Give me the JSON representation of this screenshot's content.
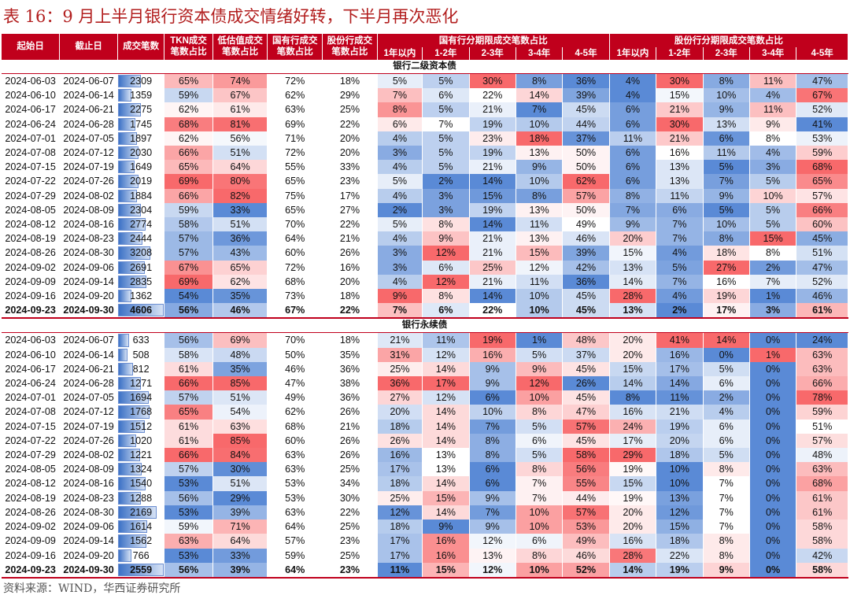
{
  "title": "表 16：9 月上半月银行资本债成交情绪好转，下半月再次恶化",
  "source": "资料来源：WIND，华西证券研究所",
  "header": {
    "start_date": "起始日",
    "end_date": "截止日",
    "count": "成交笔数",
    "tkn": "TKN成交笔数占比",
    "low_val": "低估值成交笔数占比",
    "state_bank": "国有行成交笔数占比",
    "joint_bank": "股份行成交笔数占比",
    "state_group": "国有行分期限成交笔数占比",
    "joint_group": "股份行分期限成交笔数占比",
    "buckets": [
      "1年以内",
      "1-2年",
      "2-3年",
      "3-4年",
      "4-5年",
      "1年以内",
      "1-2年",
      "2-3年",
      "3-4年",
      "4-5年"
    ]
  },
  "colors": {
    "header_bg": "#c0001c",
    "red": "#f8696b",
    "blue": "#5a8ad6",
    "white": "#ffffff"
  },
  "sections": [
    {
      "label": "银行二级资本债",
      "rows": [
        [
          "2024-06-03",
          "2024-06-07",
          "2309",
          "65%",
          "74%",
          "72%",
          "18%",
          "5%",
          "5%",
          "30%",
          "8%",
          "36%",
          "4%",
          "30%",
          "8%",
          "11%",
          "47%"
        ],
        [
          "2024-06-10",
          "2024-06-14",
          "1359",
          "59%",
          "67%",
          "62%",
          "29%",
          "7%",
          "6%",
          "22%",
          "14%",
          "39%",
          "4%",
          "15%",
          "10%",
          "4%",
          "67%"
        ],
        [
          "2024-06-17",
          "2024-06-21",
          "2275",
          "62%",
          "61%",
          "63%",
          "25%",
          "8%",
          "5%",
          "21%",
          "7%",
          "45%",
          "6%",
          "21%",
          "9%",
          "11%",
          "52%"
        ],
        [
          "2024-06-24",
          "2024-06-28",
          "1745",
          "68%",
          "81%",
          "69%",
          "22%",
          "6%",
          "7%",
          "19%",
          "10%",
          "44%",
          "6%",
          "30%",
          "13%",
          "9%",
          "41%"
        ],
        [
          "2024-07-01",
          "2024-07-05",
          "1897",
          "62%",
          "56%",
          "71%",
          "20%",
          "4%",
          "5%",
          "23%",
          "18%",
          "37%",
          "11%",
          "21%",
          "6%",
          "8%",
          "53%"
        ],
        [
          "2024-07-08",
          "2024-07-12",
          "2030",
          "66%",
          "51%",
          "72%",
          "20%",
          "3%",
          "5%",
          "19%",
          "13%",
          "50%",
          "6%",
          "16%",
          "11%",
          "4%",
          "59%"
        ],
        [
          "2024-07-15",
          "2024-07-19",
          "1649",
          "65%",
          "64%",
          "55%",
          "33%",
          "4%",
          "5%",
          "21%",
          "9%",
          "50%",
          "6%",
          "13%",
          "5%",
          "3%",
          "68%"
        ],
        [
          "2024-07-22",
          "2024-07-26",
          "2019",
          "69%",
          "80%",
          "65%",
          "23%",
          "5%",
          "2%",
          "14%",
          "10%",
          "62%",
          "6%",
          "13%",
          "7%",
          "5%",
          "65%"
        ],
        [
          "2024-07-29",
          "2024-08-02",
          "1884",
          "66%",
          "82%",
          "75%",
          "17%",
          "4%",
          "3%",
          "15%",
          "8%",
          "57%",
          "8%",
          "11%",
          "9%",
          "10%",
          "57%"
        ],
        [
          "2024-08-05",
          "2024-08-09",
          "2304",
          "59%",
          "33%",
          "65%",
          "27%",
          "2%",
          "3%",
          "19%",
          "13%",
          "50%",
          "7%",
          "6%",
          "5%",
          "5%",
          "66%"
        ],
        [
          "2024-08-12",
          "2024-08-16",
          "2774",
          "58%",
          "51%",
          "70%",
          "22%",
          "5%",
          "8%",
          "14%",
          "11%",
          "49%",
          "9%",
          "7%",
          "10%",
          "5%",
          "60%"
        ],
        [
          "2024-08-19",
          "2024-08-23",
          "2444",
          "57%",
          "36%",
          "64%",
          "21%",
          "4%",
          "9%",
          "21%",
          "13%",
          "46%",
          "20%",
          "7%",
          "8%",
          "15%",
          "45%"
        ],
        [
          "2024-08-26",
          "2024-08-30",
          "3208",
          "57%",
          "43%",
          "60%",
          "26%",
          "3%",
          "12%",
          "21%",
          "15%",
          "39%",
          "15%",
          "4%",
          "18%",
          "8%",
          "51%"
        ],
        [
          "2024-09-02",
          "2024-09-06",
          "2691",
          "67%",
          "65%",
          "72%",
          "16%",
          "3%",
          "6%",
          "25%",
          "12%",
          "42%",
          "13%",
          "5%",
          "27%",
          "2%",
          "47%"
        ],
        [
          "2024-09-09",
          "2024-09-14",
          "2835",
          "69%",
          "62%",
          "68%",
          "20%",
          "4%",
          "12%",
          "21%",
          "11%",
          "36%",
          "14%",
          "7%",
          "16%",
          "7%",
          "52%"
        ],
        [
          "2024-09-16",
          "2024-09-20",
          "1362",
          "54%",
          "35%",
          "73%",
          "18%",
          "9%",
          "8%",
          "14%",
          "10%",
          "45%",
          "28%",
          "4%",
          "19%",
          "1%",
          "46%"
        ],
        [
          "2024-09-23",
          "2024-09-30",
          "4606",
          "56%",
          "46%",
          "67%",
          "22%",
          "7%",
          "6%",
          "22%",
          "10%",
          "45%",
          "13%",
          "2%",
          "17%",
          "3%",
          "61%"
        ]
      ]
    },
    {
      "label": "银行永续债",
      "rows": [
        [
          "2024-06-03",
          "2024-06-07",
          "633",
          "56%",
          "69%",
          "70%",
          "18%",
          "21%",
          "11%",
          "19%",
          "1%",
          "48%",
          "20%",
          "41%",
          "14%",
          "0%",
          "24%"
        ],
        [
          "2024-06-10",
          "2024-06-14",
          "508",
          "58%",
          "48%",
          "50%",
          "35%",
          "31%",
          "12%",
          "16%",
          "5%",
          "37%",
          "20%",
          "16%",
          "0%",
          "1%",
          "63%"
        ],
        [
          "2024-06-17",
          "2024-06-21",
          "812",
          "61%",
          "35%",
          "46%",
          "36%",
          "25%",
          "14%",
          "9%",
          "9%",
          "45%",
          "15%",
          "17%",
          "5%",
          "0%",
          "63%"
        ],
        [
          "2024-06-24",
          "2024-06-28",
          "1271",
          "66%",
          "85%",
          "47%",
          "38%",
          "36%",
          "17%",
          "9%",
          "12%",
          "26%",
          "14%",
          "14%",
          "6%",
          "0%",
          "66%"
        ],
        [
          "2024-07-01",
          "2024-07-05",
          "1694",
          "57%",
          "51%",
          "49%",
          "36%",
          "27%",
          "12%",
          "6%",
          "10%",
          "45%",
          "8%",
          "11%",
          "2%",
          "0%",
          "78%"
        ],
        [
          "2024-07-08",
          "2024-07-12",
          "1768",
          "65%",
          "54%",
          "62%",
          "26%",
          "20%",
          "14%",
          "10%",
          "8%",
          "47%",
          "16%",
          "21%",
          "4%",
          "0%",
          "59%"
        ],
        [
          "2024-07-15",
          "2024-07-19",
          "1512",
          "61%",
          "63%",
          "68%",
          "21%",
          "18%",
          "14%",
          "7%",
          "5%",
          "57%",
          "24%",
          "19%",
          "6%",
          "0%",
          "51%"
        ],
        [
          "2024-07-22",
          "2024-07-26",
          "1020",
          "61%",
          "85%",
          "60%",
          "26%",
          "26%",
          "14%",
          "8%",
          "6%",
          "45%",
          "17%",
          "20%",
          "6%",
          "0%",
          "57%"
        ],
        [
          "2024-07-29",
          "2024-08-02",
          "1221",
          "66%",
          "84%",
          "63%",
          "26%",
          "16%",
          "13%",
          "8%",
          "5%",
          "58%",
          "29%",
          "18%",
          "5%",
          "0%",
          "48%"
        ],
        [
          "2024-08-05",
          "2024-08-09",
          "1324",
          "57%",
          "30%",
          "63%",
          "25%",
          "17%",
          "13%",
          "6%",
          "8%",
          "56%",
          "19%",
          "10%",
          "8%",
          "0%",
          "63%"
        ],
        [
          "2024-08-12",
          "2024-08-16",
          "1540",
          "53%",
          "51%",
          "53%",
          "34%",
          "18%",
          "14%",
          "6%",
          "7%",
          "55%",
          "15%",
          "10%",
          "7%",
          "0%",
          "68%"
        ],
        [
          "2024-08-19",
          "2024-08-23",
          "1288",
          "56%",
          "29%",
          "53%",
          "30%",
          "25%",
          "15%",
          "9%",
          "7%",
          "44%",
          "19%",
          "13%",
          "7%",
          "0%",
          "61%"
        ],
        [
          "2024-08-26",
          "2024-08-30",
          "2169",
          "53%",
          "39%",
          "63%",
          "22%",
          "12%",
          "14%",
          "7%",
          "10%",
          "57%",
          "20%",
          "12%",
          "7%",
          "0%",
          "61%"
        ],
        [
          "2024-09-02",
          "2024-09-06",
          "1614",
          "59%",
          "71%",
          "64%",
          "25%",
          "18%",
          "9%",
          "9%",
          "10%",
          "53%",
          "20%",
          "15%",
          "7%",
          "0%",
          "58%"
        ],
        [
          "2024-09-09",
          "2024-09-14",
          "1562",
          "63%",
          "64%",
          "57%",
          "23%",
          "17%",
          "16%",
          "12%",
          "6%",
          "49%",
          "16%",
          "18%",
          "8%",
          "0%",
          "58%"
        ],
        [
          "2024-09-16",
          "2024-09-20",
          "766",
          "53%",
          "33%",
          "59%",
          "25%",
          "17%",
          "16%",
          "13%",
          "8%",
          "46%",
          "28%",
          "22%",
          "8%",
          "0%",
          "42%"
        ],
        [
          "2024-09-23",
          "2024-09-30",
          "2559",
          "56%",
          "39%",
          "64%",
          "23%",
          "11%",
          "15%",
          "12%",
          "10%",
          "52%",
          "14%",
          "19%",
          "9%",
          "0%",
          "58%"
        ]
      ]
    }
  ]
}
